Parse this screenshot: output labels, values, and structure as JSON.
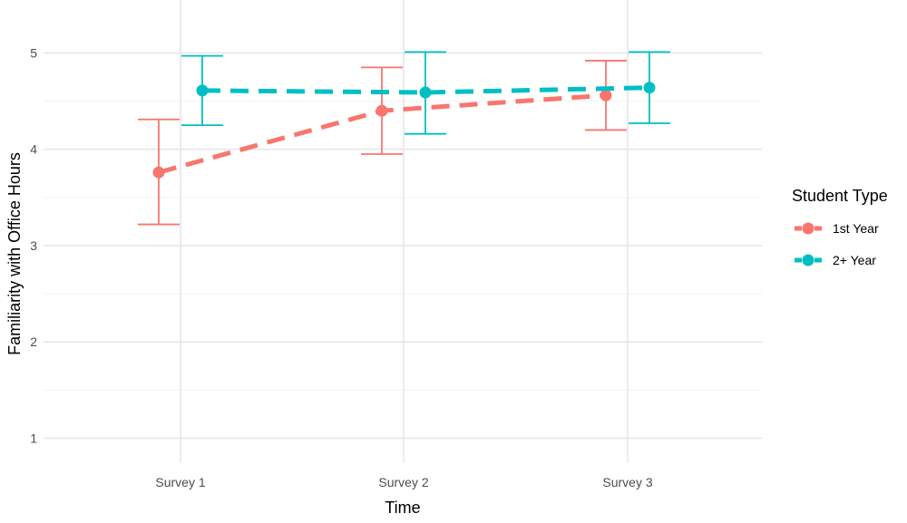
{
  "chart_data": {
    "type": "line",
    "title": "",
    "xlabel": "Time",
    "ylabel": "Familiarity with Office Hours",
    "categories": [
      "Survey 1",
      "Survey 2",
      "Survey 3"
    ],
    "yticks": [
      1,
      2,
      3,
      4,
      5
    ],
    "ylim": [
      0.75,
      5.55
    ],
    "grid": true,
    "line_style": "dashed",
    "error_bars": true,
    "legend": {
      "title": "Student Type",
      "position": "right"
    },
    "series": [
      {
        "name": "1st Year",
        "color": "#F8766D",
        "values": [
          3.76,
          4.4,
          4.56
        ],
        "lower": [
          3.22,
          3.95,
          4.2
        ],
        "upper": [
          4.31,
          4.85,
          4.92
        ],
        "dodge": -0.1
      },
      {
        "name": "2+ Year",
        "color": "#00BFC4",
        "values": [
          4.61,
          4.59,
          4.64
        ],
        "lower": [
          4.25,
          4.16,
          4.27
        ],
        "upper": [
          4.97,
          5.01,
          5.01
        ],
        "dodge": 0.1
      }
    ]
  }
}
